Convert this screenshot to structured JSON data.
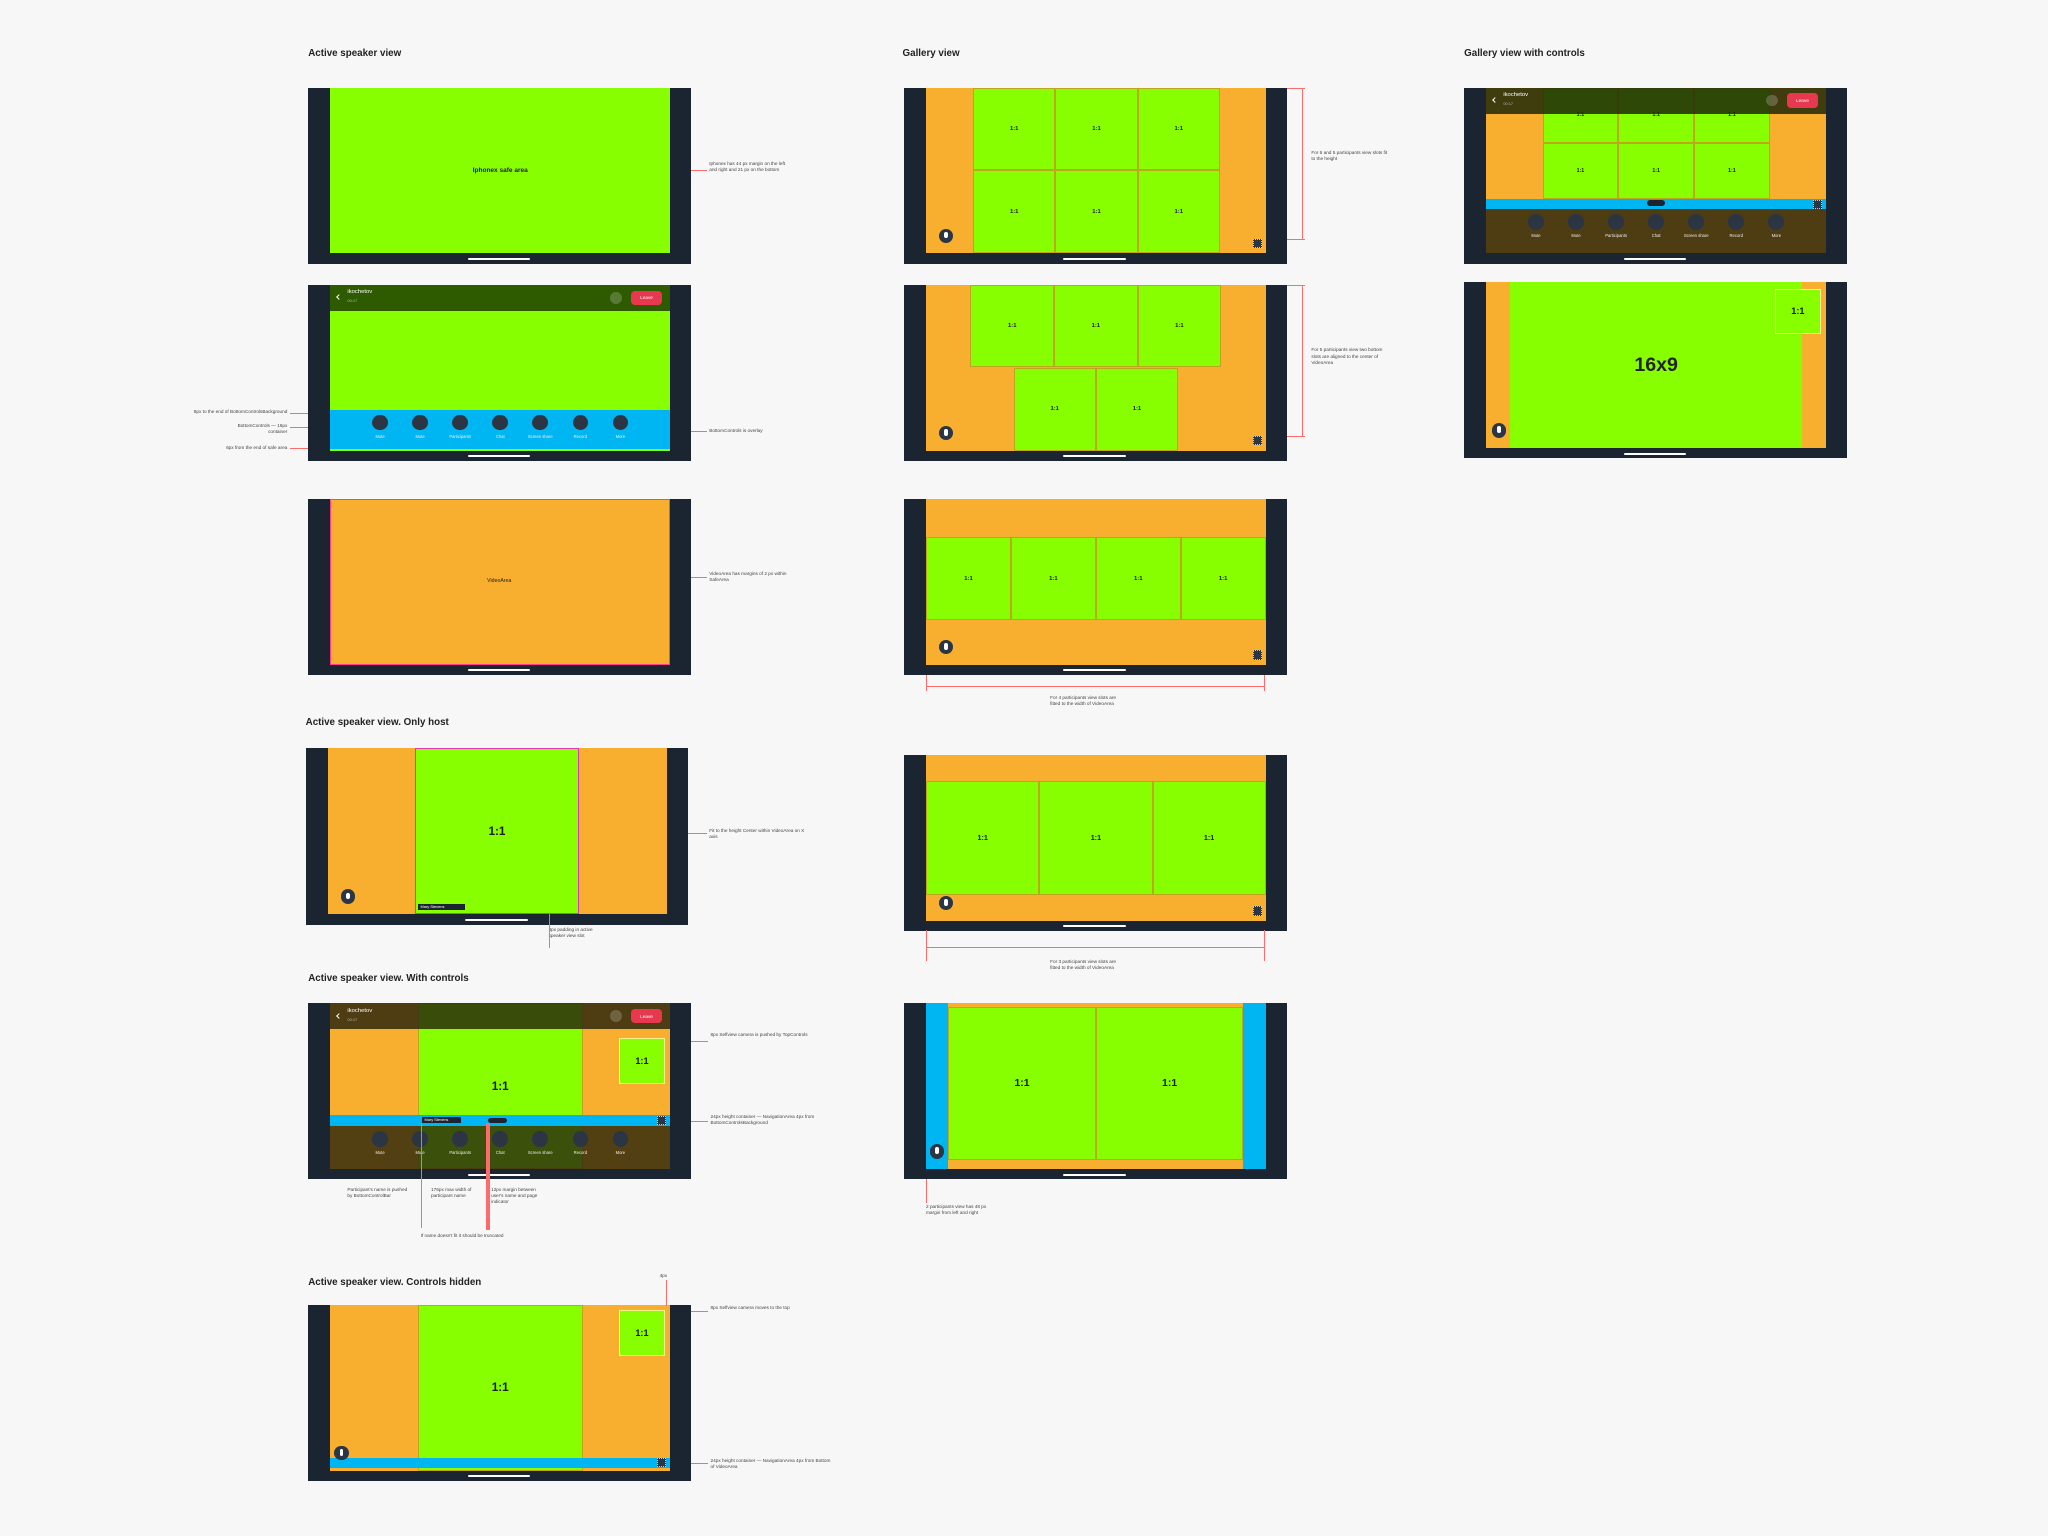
{
  "sections": [
    "Active speaker view",
    "Gallery view",
    "Gallery view with controls",
    "Active speaker view. Only host",
    "Active speaker view. With controls",
    "Active speaker view. Controls hidden"
  ],
  "labels": {
    "safe_area": "Iphonex safe area",
    "video_area": "VideoArea",
    "slot": "1:1",
    "wide": "16x9",
    "user": "ikochetov",
    "time": "00:17",
    "leave": "Leave",
    "participant": "Mary Stevens",
    "participant_long": "Mary Konstantinova..."
  },
  "controls": [
    "Mute",
    "Mute",
    "Participants",
    "Chat",
    "Screen share",
    "Record",
    "More"
  ],
  "annotations": [
    "Iphonex has 44 px margin on the left and right and 21 px on the bottom",
    "8px to the end of BottomControlsBackground",
    "BottomControls — 16px container",
    "6px from the end of safe area",
    "BottomControls is overlay",
    "VideoArea has margins of 2 px within SafeArea",
    "Fit to the height Center within VideoArea on X axis",
    "4px padding in active speaker view slot",
    "8px Selfview camera is pushed by TopControls",
    "24px height container — NavigationArea 4px from BottomControlsBackground",
    "Participant's name is pushed by BottomControlBar",
    "176px max width of participant name",
    "12px margin between user's name and page indicator",
    "If name doesn't fit it should be truncated",
    "4px",
    "8px Selfview camera moves to the top",
    "24px height container — NavigationArea 4px from Bottom of VideoArea",
    "For 6 and 5 participants view slots fit to the height",
    "For 5 participants view two bottom slots are aligned to the center of VideoArea",
    "For 4 participants view slots are fitted to the width of VideoArea",
    "For 3 participants view slots are fitted to the width of VideoArea",
    "2 participants view has 48 px margin from left and right"
  ]
}
